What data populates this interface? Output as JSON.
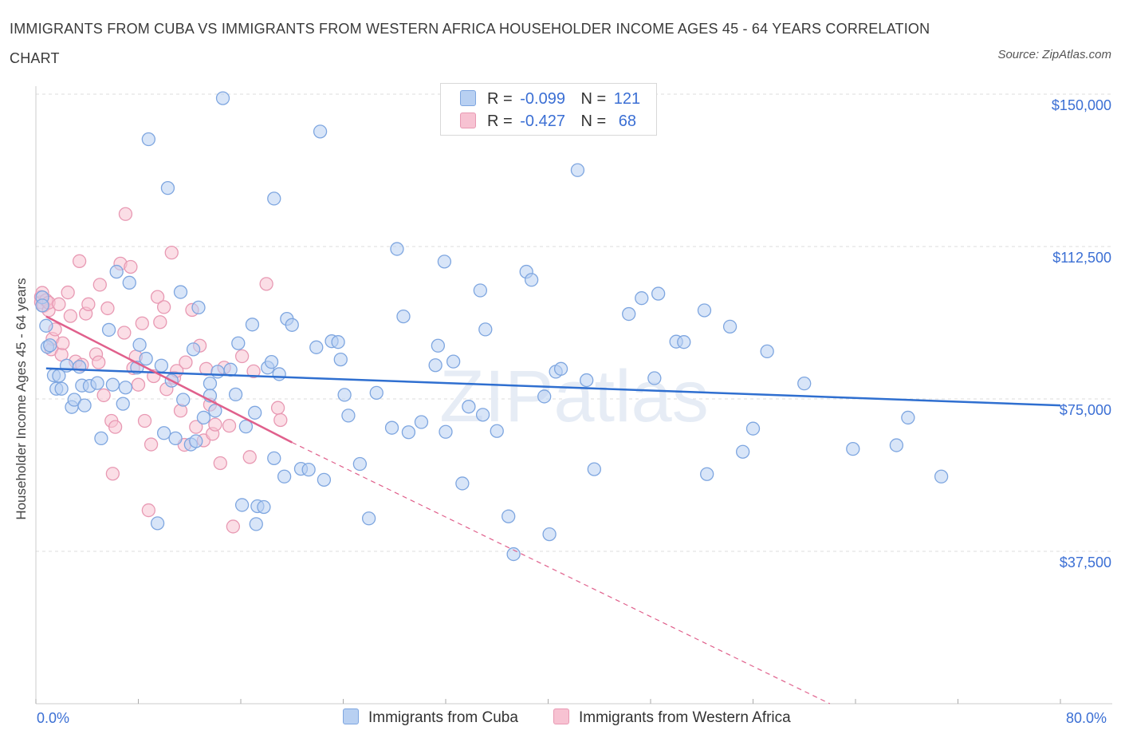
{
  "title": "IMMIGRANTS FROM CUBA VS IMMIGRANTS FROM WESTERN AFRICA HOUSEHOLDER INCOME AGES 45 - 64 YEARS CORRELATION CHART",
  "source": "Source: ZipAtlas.com",
  "watermark": "ZIPatlas",
  "legend": {
    "row1": {
      "r_label": "R =",
      "r_value": "-0.099",
      "n_label": "N =",
      "n_value": "121"
    },
    "row2": {
      "r_label": "R =",
      "r_value": "-0.427",
      "n_label": "N =",
      "n_value": "68"
    }
  },
  "colors": {
    "cuba_fill": "#b8d0f2",
    "cuba_stroke": "#7ea6e0",
    "cuba_line": "#2f6fd0",
    "wa_fill": "#f7c2d2",
    "wa_stroke": "#e899b3",
    "wa_line": "#e0608c",
    "axis_text": "#3b6fd4",
    "grid": "#dddddd"
  },
  "chart_data": {
    "type": "scatter",
    "xlabel": "",
    "ylabel": "Householder Income Ages 45 - 64 years",
    "xlim": [
      0,
      80
    ],
    "ylim": [
      0,
      150000
    ],
    "x_tick_labels": [
      "0.0%",
      "80.0%"
    ],
    "y_ticks": [
      37500,
      75000,
      112500,
      150000
    ],
    "y_tick_labels": [
      "$37,500",
      "$75,000",
      "$112,500",
      "$150,000"
    ],
    "grid": "horizontal dashed",
    "series": [
      {
        "name": "Immigrants from Cuba",
        "color": "#b8d0f2",
        "trend": {
          "x0": 0.8,
          "y0": 82500,
          "x1": 80,
          "y1": 73400,
          "style": "solid"
        },
        "points": [
          [
            0.5,
            100000
          ],
          [
            0.5,
            98000
          ],
          [
            0.8,
            93000
          ],
          [
            0.9,
            87800
          ],
          [
            1.1,
            88200
          ],
          [
            1.4,
            80800
          ],
          [
            1.6,
            77500
          ],
          [
            1.8,
            80700
          ],
          [
            2.0,
            77500
          ],
          [
            2.4,
            83200
          ],
          [
            2.8,
            73000
          ],
          [
            3.0,
            74800
          ],
          [
            3.4,
            82900
          ],
          [
            3.6,
            78300
          ],
          [
            3.8,
            73400
          ],
          [
            4.2,
            78200
          ],
          [
            4.8,
            78900
          ],
          [
            5.1,
            65300
          ],
          [
            5.7,
            92000
          ],
          [
            6.0,
            78500
          ],
          [
            6.3,
            106300
          ],
          [
            6.8,
            73800
          ],
          [
            7.0,
            77800
          ],
          [
            7.3,
            103600
          ],
          [
            7.9,
            82700
          ],
          [
            8.1,
            88300
          ],
          [
            8.6,
            84900
          ],
          [
            8.8,
            138900
          ],
          [
            9.5,
            44400
          ],
          [
            9.8,
            83200
          ],
          [
            10.0,
            66600
          ],
          [
            10.3,
            126900
          ],
          [
            10.6,
            79500
          ],
          [
            10.9,
            65300
          ],
          [
            11.3,
            101300
          ],
          [
            11.5,
            74800
          ],
          [
            12.1,
            63800
          ],
          [
            12.3,
            87200
          ],
          [
            12.5,
            64600
          ],
          [
            12.7,
            97500
          ],
          [
            13.1,
            70400
          ],
          [
            13.6,
            78800
          ],
          [
            13.6,
            75800
          ],
          [
            14.0,
            72100
          ],
          [
            14.2,
            81700
          ],
          [
            14.6,
            149000
          ],
          [
            15.2,
            82200
          ],
          [
            15.6,
            76100
          ],
          [
            15.8,
            88700
          ],
          [
            16.1,
            48900
          ],
          [
            16.4,
            68200
          ],
          [
            16.9,
            93300
          ],
          [
            17.1,
            71600
          ],
          [
            17.2,
            44200
          ],
          [
            17.3,
            48600
          ],
          [
            17.8,
            48400
          ],
          [
            18.1,
            82700
          ],
          [
            18.4,
            84100
          ],
          [
            18.6,
            60400
          ],
          [
            18.6,
            124300
          ],
          [
            19.0,
            81100
          ],
          [
            19.4,
            55900
          ],
          [
            19.6,
            94700
          ],
          [
            20.0,
            93200
          ],
          [
            20.7,
            57800
          ],
          [
            21.3,
            57600
          ],
          [
            21.9,
            87700
          ],
          [
            22.2,
            140800
          ],
          [
            22.5,
            55100
          ],
          [
            23.1,
            89200
          ],
          [
            23.6,
            89000
          ],
          [
            23.8,
            84700
          ],
          [
            24.1,
            76000
          ],
          [
            24.4,
            70900
          ],
          [
            25.3,
            59000
          ],
          [
            26.0,
            45600
          ],
          [
            26.6,
            76500
          ],
          [
            27.8,
            67900
          ],
          [
            28.2,
            111900
          ],
          [
            28.7,
            95300
          ],
          [
            29.1,
            66800
          ],
          [
            30.1,
            69300
          ],
          [
            31.2,
            83300
          ],
          [
            31.4,
            88100
          ],
          [
            31.9,
            108800
          ],
          [
            32.0,
            66900
          ],
          [
            32.6,
            84200
          ],
          [
            33.3,
            54200
          ],
          [
            33.8,
            73100
          ],
          [
            34.7,
            101700
          ],
          [
            34.9,
            71100
          ],
          [
            35.1,
            92100
          ],
          [
            36.0,
            67100
          ],
          [
            36.9,
            46100
          ],
          [
            37.3,
            36800
          ],
          [
            38.3,
            106300
          ],
          [
            38.7,
            104300
          ],
          [
            39.7,
            75600
          ],
          [
            40.1,
            41700
          ],
          [
            40.6,
            81700
          ],
          [
            41.0,
            82400
          ],
          [
            42.3,
            131300
          ],
          [
            43.0,
            79600
          ],
          [
            43.6,
            57700
          ],
          [
            46.3,
            95900
          ],
          [
            47.3,
            99800
          ],
          [
            48.3,
            80100
          ],
          [
            48.6,
            100900
          ],
          [
            50.0,
            89100
          ],
          [
            50.6,
            89000
          ],
          [
            52.2,
            96800
          ],
          [
            52.4,
            56500
          ],
          [
            54.2,
            92800
          ],
          [
            55.2,
            62000
          ],
          [
            56.0,
            67700
          ],
          [
            57.1,
            86700
          ],
          [
            60.0,
            78800
          ],
          [
            63.8,
            62700
          ],
          [
            67.2,
            63600
          ],
          [
            68.1,
            70400
          ],
          [
            70.7,
            55900
          ]
        ]
      },
      {
        "name": "Immigrants from Western Africa",
        "color": "#f7c2d2",
        "trend": {
          "x0": 0.8,
          "y0": 95300,
          "x1": 20,
          "y1": 64300,
          "style": "solid",
          "dashed_to": {
            "x": 62,
            "y": 0
          }
        },
        "points": [
          [
            0.4,
            100100
          ],
          [
            0.4,
            98800
          ],
          [
            0.5,
            101100
          ],
          [
            0.6,
            97900
          ],
          [
            0.8,
            99300
          ],
          [
            1.0,
            96800
          ],
          [
            1.0,
            98700
          ],
          [
            1.2,
            87200
          ],
          [
            1.3,
            89800
          ],
          [
            1.5,
            92100
          ],
          [
            1.8,
            98300
          ],
          [
            2.0,
            85900
          ],
          [
            2.1,
            88700
          ],
          [
            2.5,
            101200
          ],
          [
            2.7,
            95400
          ],
          [
            3.1,
            84200
          ],
          [
            3.4,
            108900
          ],
          [
            3.6,
            83400
          ],
          [
            3.9,
            96000
          ],
          [
            4.1,
            98300
          ],
          [
            4.7,
            86000
          ],
          [
            4.9,
            84000
          ],
          [
            5.0,
            103100
          ],
          [
            5.3,
            75900
          ],
          [
            5.6,
            97300
          ],
          [
            5.9,
            69600
          ],
          [
            6.0,
            56600
          ],
          [
            6.2,
            68100
          ],
          [
            6.6,
            108300
          ],
          [
            6.9,
            91300
          ],
          [
            7.0,
            120500
          ],
          [
            7.4,
            107500
          ],
          [
            7.6,
            82600
          ],
          [
            7.8,
            85400
          ],
          [
            8.0,
            78500
          ],
          [
            8.3,
            93600
          ],
          [
            8.5,
            69600
          ],
          [
            8.8,
            47600
          ],
          [
            9.0,
            63800
          ],
          [
            9.2,
            80600
          ],
          [
            9.5,
            100100
          ],
          [
            9.7,
            93900
          ],
          [
            10.0,
            97600
          ],
          [
            10.2,
            77400
          ],
          [
            10.6,
            111000
          ],
          [
            10.8,
            80200
          ],
          [
            11.0,
            81900
          ],
          [
            11.3,
            72100
          ],
          [
            11.6,
            63700
          ],
          [
            11.7,
            84000
          ],
          [
            12.2,
            96900
          ],
          [
            12.5,
            68100
          ],
          [
            12.8,
            88100
          ],
          [
            13.1,
            64800
          ],
          [
            13.3,
            82400
          ],
          [
            13.6,
            73600
          ],
          [
            13.8,
            66400
          ],
          [
            14.0,
            68700
          ],
          [
            14.4,
            59200
          ],
          [
            14.7,
            82700
          ],
          [
            15.1,
            68400
          ],
          [
            15.4,
            43600
          ],
          [
            16.1,
            85500
          ],
          [
            16.7,
            60700
          ],
          [
            17.0,
            81800
          ],
          [
            18.0,
            103300
          ],
          [
            18.9,
            72800
          ],
          [
            19.1,
            69800
          ]
        ]
      }
    ]
  }
}
